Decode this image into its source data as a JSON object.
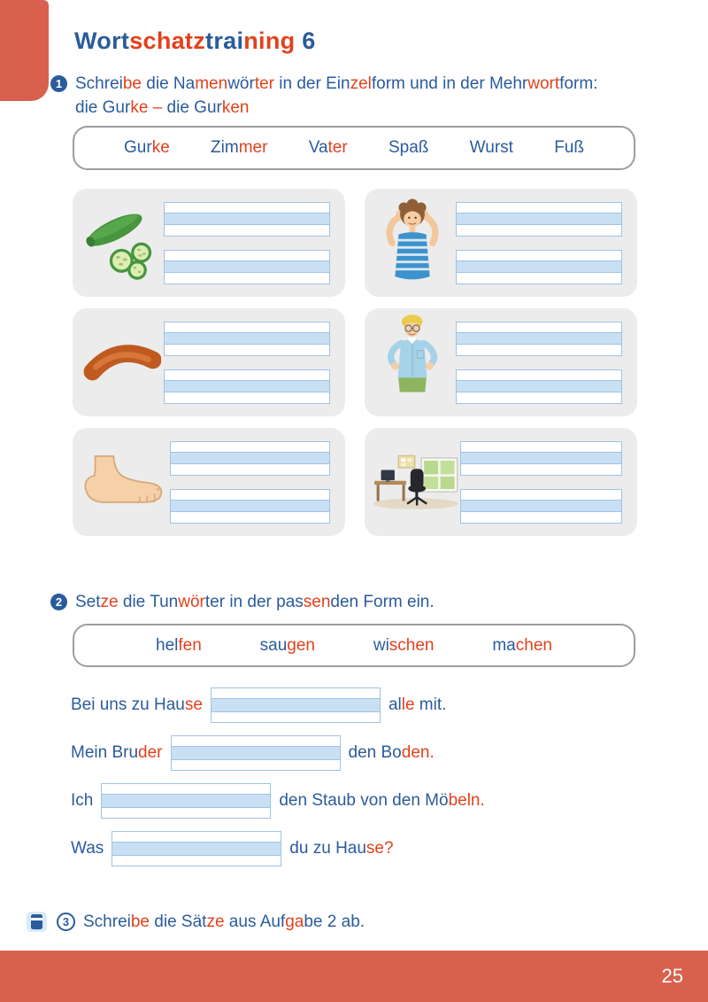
{
  "colors": {
    "blue": "#2a5b9c",
    "red": "#e2411c",
    "coral": "#d9604f",
    "cardbg": "#ececec",
    "lineborder": "#9fc3e3",
    "linefill": "#c9e0f4",
    "boxborder": "#9e9e9e"
  },
  "title": {
    "text": "Wortschatztraining 6",
    "segments": [
      {
        "t": "Wort",
        "c": "b"
      },
      {
        "t": "schatz",
        "c": "r"
      },
      {
        "t": "trai",
        "c": "b"
      },
      {
        "t": "ning",
        "c": "r"
      },
      {
        "t": " 6",
        "c": "b"
      }
    ]
  },
  "exercise1": {
    "badge": "1",
    "instruction_text": "Schreibe die Namenwörter in der Einzelform und in der Mehrwortform: die Gurke – die Gurken",
    "line1_segments": [
      {
        "t": "Schrei",
        "c": "b"
      },
      {
        "t": "be",
        "c": "r"
      },
      {
        "t": " die ",
        "c": "b"
      },
      {
        "t": "Na",
        "c": "b"
      },
      {
        "t": "men",
        "c": "r"
      },
      {
        "t": "wör",
        "c": "b"
      },
      {
        "t": "ter",
        "c": "r"
      },
      {
        "t": " in der ",
        "c": "b"
      },
      {
        "t": "Ein",
        "c": "b"
      },
      {
        "t": "zel",
        "c": "r"
      },
      {
        "t": "form und in der ",
        "c": "b"
      },
      {
        "t": "Mehr",
        "c": "b"
      },
      {
        "t": "wort",
        "c": "r"
      },
      {
        "t": "form:",
        "c": "b"
      }
    ],
    "line2_segments": [
      {
        "t": "die ",
        "c": "b"
      },
      {
        "t": "Gur",
        "c": "b"
      },
      {
        "t": "ke",
        "c": "r"
      },
      {
        "t": " – ",
        "c": "r"
      },
      {
        "t": "die ",
        "c": "b"
      },
      {
        "t": "Gur",
        "c": "b"
      },
      {
        "t": "ken",
        "c": "r"
      }
    ],
    "word_box": {
      "words": [
        {
          "text": "Gurke",
          "segments": [
            {
              "t": "Gur",
              "c": "b"
            },
            {
              "t": "ke",
              "c": "r"
            }
          ]
        },
        {
          "text": "Zimmer",
          "segments": [
            {
              "t": "Zim",
              "c": "b"
            },
            {
              "t": "mer",
              "c": "r"
            }
          ]
        },
        {
          "text": "Vater",
          "segments": [
            {
              "t": "Va",
              "c": "b"
            },
            {
              "t": "ter",
              "c": "r"
            }
          ]
        },
        {
          "text": "Spaß",
          "segments": [
            {
              "t": "Spaß",
              "c": "b"
            }
          ]
        },
        {
          "text": "Wurst",
          "segments": [
            {
              "t": "Wurst",
              "c": "b"
            }
          ]
        },
        {
          "text": "Fuß",
          "segments": [
            {
              "t": "Fuß",
              "c": "b"
            }
          ]
        }
      ]
    },
    "cards": [
      {
        "icon": "cucumber-image"
      },
      {
        "icon": "boy-image"
      },
      {
        "icon": "sausage-image"
      },
      {
        "icon": "father-image"
      },
      {
        "icon": "foot-image"
      },
      {
        "icon": "room-image"
      }
    ]
  },
  "exercise2": {
    "badge": "2",
    "instruction_text": "Setze die Tunwörter in der passenden Form ein.",
    "instruction_segments": [
      {
        "t": "Set",
        "c": "b"
      },
      {
        "t": "ze",
        "c": "r"
      },
      {
        "t": " die ",
        "c": "b"
      },
      {
        "t": "Tun",
        "c": "b"
      },
      {
        "t": "wör",
        "c": "r"
      },
      {
        "t": "ter",
        "c": "b"
      },
      {
        "t": " in der ",
        "c": "b"
      },
      {
        "t": "pas",
        "c": "b"
      },
      {
        "t": "sen",
        "c": "r"
      },
      {
        "t": "den",
        "c": "b"
      },
      {
        "t": " Form ein.",
        "c": "b"
      }
    ],
    "word_box": {
      "words": [
        {
          "text": "helfen",
          "segments": [
            {
              "t": "hel",
              "c": "b"
            },
            {
              "t": "fen",
              "c": "r"
            }
          ]
        },
        {
          "text": "saugen",
          "segments": [
            {
              "t": "sau",
              "c": "b"
            },
            {
              "t": "gen",
              "c": "r"
            }
          ]
        },
        {
          "text": "wischen",
          "segments": [
            {
              "t": "wi",
              "c": "b"
            },
            {
              "t": "schen",
              "c": "r"
            }
          ]
        },
        {
          "text": "machen",
          "segments": [
            {
              "t": "ma",
              "c": "b"
            },
            {
              "t": "chen",
              "c": "r"
            }
          ]
        }
      ]
    },
    "sentences": [
      {
        "text": "Bei uns zu Hause ___ alle mit.",
        "blank_value": "",
        "pre_segments": [
          {
            "t": "Bei uns zu ",
            "c": "b"
          },
          {
            "t": "Hau",
            "c": "b"
          },
          {
            "t": "se",
            "c": "r"
          }
        ],
        "post_segments": [
          {
            "t": "al",
            "c": "b"
          },
          {
            "t": "le",
            "c": "r"
          },
          {
            "t": " mit.",
            "c": "b"
          }
        ]
      },
      {
        "text": "Mein Bruder ___ den Boden.",
        "blank_value": "",
        "pre_segments": [
          {
            "t": "Mein ",
            "c": "b"
          },
          {
            "t": "Bru",
            "c": "b"
          },
          {
            "t": "der",
            "c": "r"
          }
        ],
        "post_segments": [
          {
            "t": "den ",
            "c": "b"
          },
          {
            "t": "Bo",
            "c": "b"
          },
          {
            "t": "den.",
            "c": "r"
          }
        ]
      },
      {
        "text": "Ich ___ den Staub von den Möbeln.",
        "blank_value": "",
        "pre_segments": [
          {
            "t": "Ich",
            "c": "b"
          }
        ],
        "post_segments": [
          {
            "t": "den Staub von den ",
            "c": "b"
          },
          {
            "t": "Mö",
            "c": "b"
          },
          {
            "t": "beln.",
            "c": "r"
          }
        ]
      },
      {
        "text": "Was ___ du zu Hause?",
        "blank_value": "",
        "pre_segments": [
          {
            "t": "Was",
            "c": "b"
          }
        ],
        "post_segments": [
          {
            "t": "du zu ",
            "c": "b"
          },
          {
            "t": "Hau",
            "c": "b"
          },
          {
            "t": "se?",
            "c": "r"
          }
        ]
      }
    ]
  },
  "exercise3": {
    "badge": "3",
    "icon": "notebook-icon",
    "instruction_text": "Schreibe die Sätze aus Aufgabe 2 ab.",
    "instruction_segments": [
      {
        "t": "Schrei",
        "c": "b"
      },
      {
        "t": "be",
        "c": "r"
      },
      {
        "t": " die ",
        "c": "b"
      },
      {
        "t": "Sät",
        "c": "b"
      },
      {
        "t": "ze",
        "c": "r"
      },
      {
        "t": " aus ",
        "c": "b"
      },
      {
        "t": "Auf",
        "c": "b"
      },
      {
        "t": "ga",
        "c": "r"
      },
      {
        "t": "be",
        "c": "b"
      },
      {
        "t": " 2 ab.",
        "c": "b"
      }
    ]
  },
  "footer": {
    "page_number": "25"
  }
}
